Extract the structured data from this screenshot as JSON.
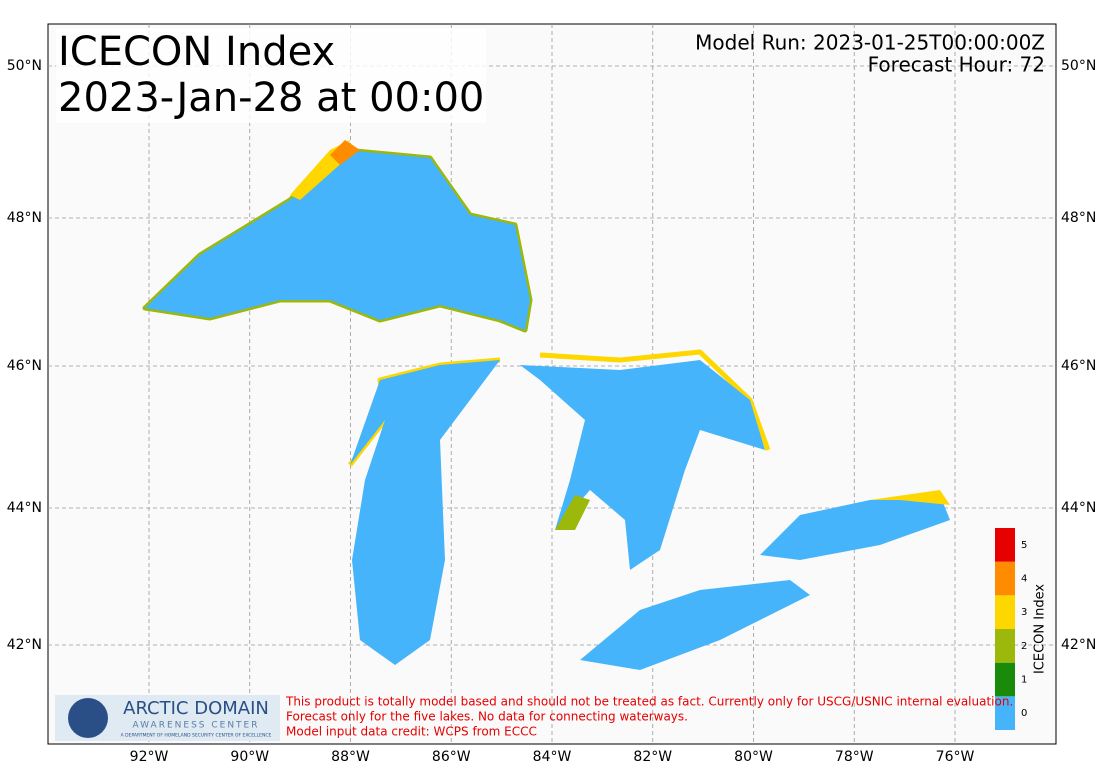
{
  "header": {
    "title_lines": [
      "ICECON Index",
      "2023-Jan-28 at 00:00"
    ],
    "model_run": "Model Run: 2023-01-25T00:00:00Z",
    "forecast_hour": "Forecast Hour: 72"
  },
  "map": {
    "lat_labels": [
      "50°N",
      "48°N",
      "46°N",
      "44°N",
      "42°N"
    ],
    "lon_labels": [
      "92°W",
      "90°W",
      "88°W",
      "86°W",
      "84°W",
      "82°W",
      "80°W",
      "78°W",
      "76°W"
    ]
  },
  "colorbar": {
    "label": "ICECON Index",
    "levels": [
      {
        "value": 0,
        "color": "#46b4fa"
      },
      {
        "value": 1,
        "color": "#1a8a0a"
      },
      {
        "value": 2,
        "color": "#9cb80a"
      },
      {
        "value": 3,
        "color": "#ffd700"
      },
      {
        "value": 4,
        "color": "#ff8c00"
      },
      {
        "value": 5,
        "color": "#e60000"
      }
    ]
  },
  "logo": {
    "name": "ARCTIC DOMAIN",
    "subtitle": "AWARENESS CENTER",
    "tagline": "A DEPARTMENT OF HOMELAND SECURITY CENTER OF EXCELLENCE"
  },
  "disclaimer": [
    "This product is totally model based and should not be treated as fact. Currently only for USCG/USNIC internal evaluation.",
    "Forecast only for the five lakes. No data for connecting waterways.",
    "Model input data credit: WCPS from ECCC"
  ]
}
